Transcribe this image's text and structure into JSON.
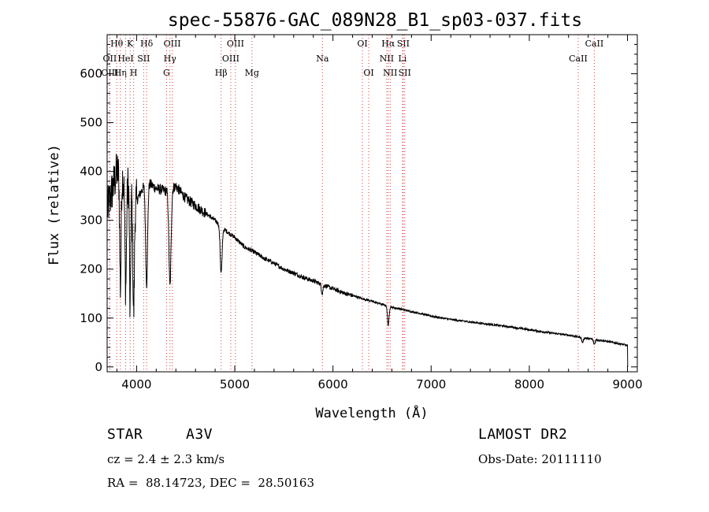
{
  "chart_data": {
    "type": "line",
    "title": "spec-55876-GAC_089N28_B1_sp03-037.fits",
    "xlabel": "Wavelength (Å)",
    "ylabel": "Flux (relative)",
    "xlim": [
      3700,
      9100
    ],
    "ylim": [
      -10,
      680
    ],
    "xticks": [
      4000,
      5000,
      6000,
      7000,
      8000,
      9000
    ],
    "yticks": [
      0,
      100,
      200,
      300,
      400,
      500,
      600
    ],
    "continuum_samples": [
      [
        3700,
        320
      ],
      [
        3800,
        400
      ],
      [
        3900,
        380
      ],
      [
        4000,
        340
      ],
      [
        4100,
        380
      ],
      [
        4200,
        365
      ],
      [
        4300,
        360
      ],
      [
        4400,
        370
      ],
      [
        4500,
        345
      ],
      [
        4600,
        330
      ],
      [
        4700,
        315
      ],
      [
        4800,
        300
      ],
      [
        4900,
        280
      ],
      [
        5000,
        265
      ],
      [
        5100,
        245
      ],
      [
        5200,
        235
      ],
      [
        5300,
        222
      ],
      [
        5400,
        212
      ],
      [
        5500,
        200
      ],
      [
        5600,
        192
      ],
      [
        5700,
        183
      ],
      [
        5800,
        176
      ],
      [
        5900,
        168
      ],
      [
        6000,
        160
      ],
      [
        6100,
        152
      ],
      [
        6200,
        146
      ],
      [
        6300,
        140
      ],
      [
        6400,
        134
      ],
      [
        6500,
        128
      ],
      [
        6600,
        122
      ],
      [
        6700,
        118
      ],
      [
        6800,
        113
      ],
      [
        6900,
        109
      ],
      [
        7000,
        104
      ],
      [
        7200,
        97
      ],
      [
        7400,
        92
      ],
      [
        7600,
        87
      ],
      [
        7800,
        82
      ],
      [
        8000,
        76
      ],
      [
        8200,
        70
      ],
      [
        8400,
        65
      ],
      [
        8600,
        58
      ],
      [
        8800,
        52
      ],
      [
        9000,
        44
      ]
    ],
    "absorption_features": [
      {
        "wave": 3835,
        "depth": 230,
        "width": 7
      },
      {
        "wave": 3889,
        "depth": 220,
        "width": 8
      },
      {
        "wave": 3934,
        "depth": 260,
        "width": 6
      },
      {
        "wave": 3970,
        "depth": 240,
        "width": 8
      },
      {
        "wave": 4102,
        "depth": 210,
        "width": 10
      },
      {
        "wave": 4340,
        "depth": 200,
        "width": 11
      },
      {
        "wave": 4861,
        "depth": 95,
        "width": 10
      },
      {
        "wave": 5890,
        "depth": 18,
        "width": 8
      },
      {
        "wave": 6563,
        "depth": 40,
        "width": 8
      },
      {
        "wave": 8542,
        "depth": 10,
        "width": 8
      },
      {
        "wave": 8662,
        "depth": 10,
        "width": 8
      }
    ],
    "line_markers": [
      {
        "label": "Hθ",
        "wave": 3798,
        "row": 0
      },
      {
        "label": "OII",
        "wave": 3727,
        "row": 1
      },
      {
        "label": "OIII",
        "wave": 3727,
        "row": 2
      },
      {
        "label": "Hη",
        "wave": 3835,
        "row": 2
      },
      {
        "label": "HeI",
        "wave": 3889,
        "row": 1
      },
      {
        "label": "K",
        "wave": 3934,
        "row": 0
      },
      {
        "label": "SII",
        "wave": 4072,
        "row": 1
      },
      {
        "label": "H",
        "wave": 3970,
        "row": 2
      },
      {
        "label": "Hδ",
        "wave": 4102,
        "row": 0
      },
      {
        "label": "OIII",
        "wave": 4363,
        "row": 0
      },
      {
        "label": "Hγ",
        "wave": 4340,
        "row": 1
      },
      {
        "label": "G",
        "wave": 4305,
        "row": 2
      },
      {
        "label": "Hβ",
        "wave": 4861,
        "row": 2
      },
      {
        "label": "OIII",
        "wave": 5007,
        "row": 0
      },
      {
        "label": "OIII",
        "wave": 4959,
        "row": 1
      },
      {
        "label": "Mg",
        "wave": 5175,
        "row": 2
      },
      {
        "label": "Na",
        "wave": 5893,
        "row": 1
      },
      {
        "label": "OI",
        "wave": 6300,
        "row": 0
      },
      {
        "label": "OI",
        "wave": 6364,
        "row": 2
      },
      {
        "label": "Hα",
        "wave": 6563,
        "row": 0
      },
      {
        "label": "SII",
        "wave": 6716,
        "row": 0
      },
      {
        "label": "NII",
        "wave": 6548,
        "row": 1
      },
      {
        "label": "Li",
        "wave": 6708,
        "row": 1
      },
      {
        "label": "NII",
        "wave": 6583,
        "row": 2
      },
      {
        "label": "SII",
        "wave": 6731,
        "row": 2
      },
      {
        "label": "CaII",
        "wave": 8662,
        "row": 0
      },
      {
        "label": "CaII",
        "wave": 8498,
        "row": 1
      }
    ]
  },
  "info": {
    "object_class": "STAR",
    "subclass": "A3V",
    "survey": "LAMOST DR2",
    "redshift_text": "cz = 2.4 ± 2.3 km/s",
    "obs_date_text": "Obs-Date: 20111110",
    "coords_text": "RA =  88.14723, DEC =  28.50163"
  },
  "colors": {
    "line_marker": "#d23c3c",
    "spectrum": "#000000",
    "axes": "#000000"
  }
}
